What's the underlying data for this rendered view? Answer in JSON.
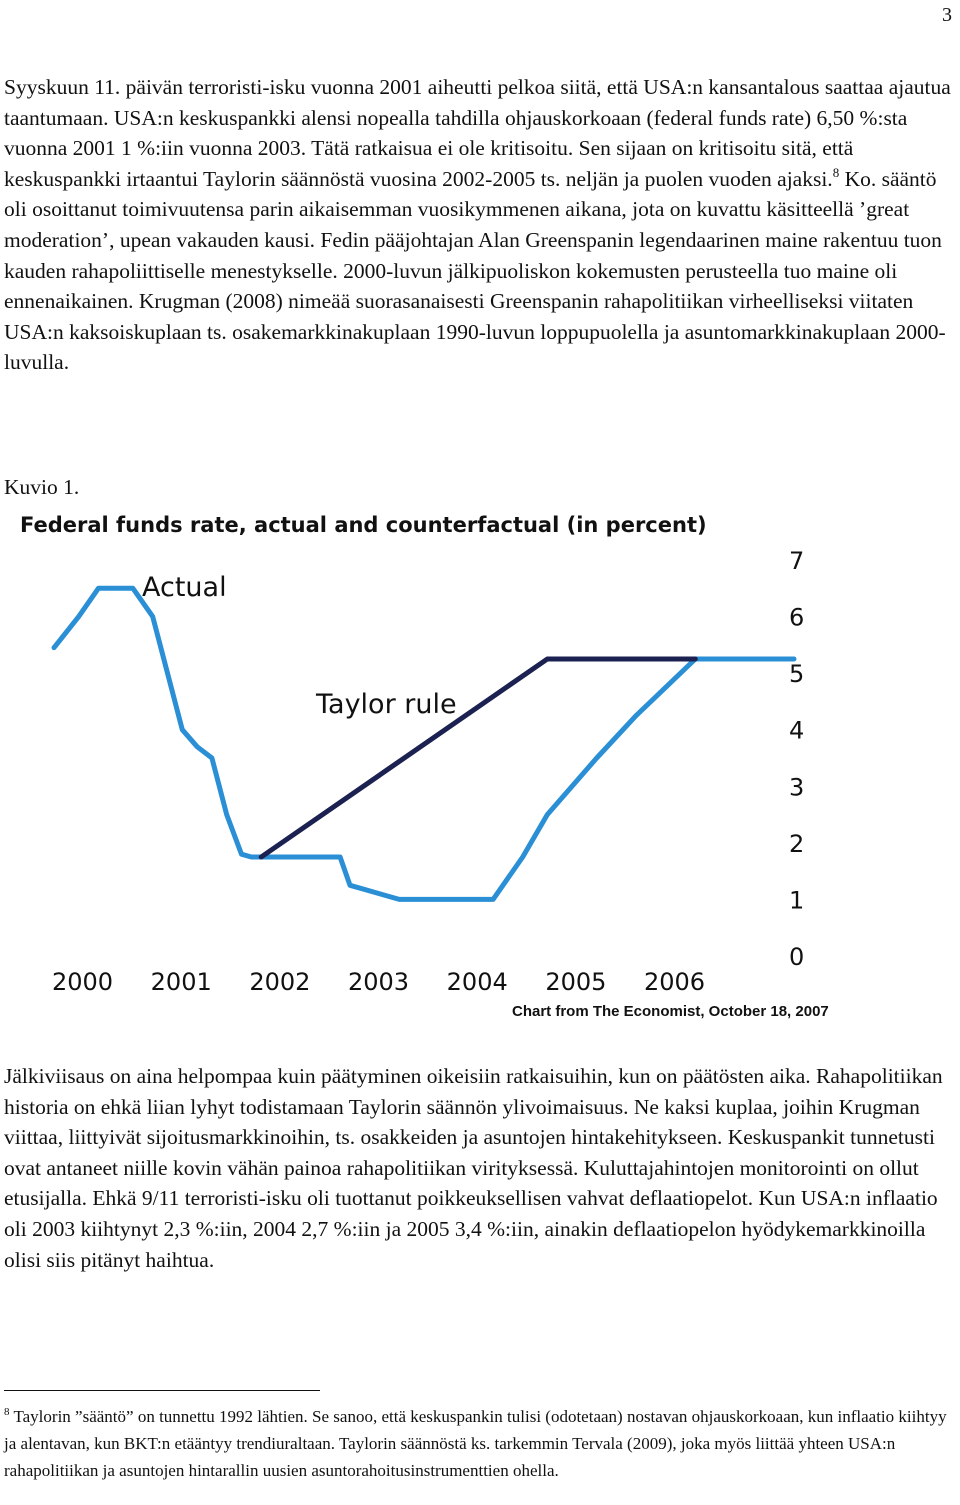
{
  "page_number": "3",
  "paragraph1": {
    "p1": "Syyskuun 11. päivän terroristi-isku vuonna 2001 aiheutti pelkoa siitä, että USA:n kansantalous saattaa ajautua taantumaan. USA:n keskuspankki alensi nopealla tahdilla ohjauskorkoaan (federal funds rate) 6,50 %:sta vuonna 2001 1 %:iin vuonna 2003. Tätä ratkaisua ei ole kritisoitu. Sen sijaan on kritisoitu sitä, että keskuspankki irtaantui Taylorin säännöstä vuosina 2002-2005 ts. neljän ja puolen vuoden ajaksi.",
    "footnote_ref": "8",
    "p2": " Ko. sääntö oli osoittanut toimivuutensa parin aikaisemman vuosikymmenen aikana, jota on kuvattu käsitteellä ’great moderation’, upean vakauden kausi. Fedin pääjohtajan Alan Greenspanin legendaarinen maine rakentuu tuon kauden rahapoliittiselle menestykselle. 2000-luvun jälkipuoliskon kokemusten perusteella tuo maine oli ennenaikainen. Krugman (2008) nimeää suorasanaisesti Greenspanin rahapolitiikan virheelliseksi viitaten USA:n kaksoiskuplaan ts. osakemarkkinakuplaan 1990-luvun loppupuolella ja asuntomarkkinakuplaan 2000-luvulla."
  },
  "figure_caption": "Kuvio 1.",
  "chart_data": {
    "type": "line",
    "title": "Federal funds rate, actual and counterfactual (in percent)",
    "source": "Chart from The Economist, October 18, 2007",
    "xlabel": "",
    "ylabel": "",
    "x_ticks": [
      "2000",
      "2001",
      "2002",
      "2003",
      "2004",
      "2005",
      "2006"
    ],
    "y_ticks": [
      "0",
      "1",
      "2",
      "3",
      "4",
      "5",
      "6",
      "7"
    ],
    "xlim": [
      2000.0,
      2007.5
    ],
    "ylim": [
      0,
      7
    ],
    "y_axis_side": "right",
    "grid": false,
    "legend": "inline labels",
    "colors": {
      "actual": "#2b8fd6",
      "taylor": "#1b2150"
    },
    "series": [
      {
        "name": "Actual",
        "points": [
          [
            2000.0,
            5.45
          ],
          [
            2000.25,
            6.0
          ],
          [
            2000.45,
            6.5
          ],
          [
            2000.8,
            6.5
          ],
          [
            2001.0,
            6.0
          ],
          [
            2001.15,
            5.0
          ],
          [
            2001.3,
            4.0
          ],
          [
            2001.45,
            3.7
          ],
          [
            2001.6,
            3.5
          ],
          [
            2001.75,
            2.5
          ],
          [
            2001.9,
            1.8
          ],
          [
            2002.0,
            1.75
          ],
          [
            2002.9,
            1.75
          ],
          [
            2003.0,
            1.25
          ],
          [
            2003.5,
            1.0
          ],
          [
            2004.45,
            1.0
          ],
          [
            2004.75,
            1.75
          ],
          [
            2005.0,
            2.5
          ],
          [
            2005.5,
            3.5
          ],
          [
            2005.9,
            4.25
          ],
          [
            2006.2,
            4.75
          ],
          [
            2006.5,
            5.25
          ],
          [
            2007.5,
            5.25
          ]
        ]
      },
      {
        "name": "Taylor rule",
        "points": [
          [
            2002.1,
            1.75
          ],
          [
            2005.0,
            5.25
          ],
          [
            2006.5,
            5.25
          ]
        ]
      }
    ]
  },
  "paragraph2": "Jälkiviisaus on aina helpompaa kuin päätyminen oikeisiin ratkaisuihin, kun on päätösten aika. Rahapolitiikan historia on ehkä liian lyhyt todistamaan Taylorin säännön ylivoimaisuus. Ne kaksi kuplaa, joihin Krugman viittaa, liittyivät sijoitusmarkkinoihin, ts. osakkeiden ja asuntojen hintakehitykseen. Keskuspankit tunnetusti ovat antaneet niille kovin vähän painoa rahapolitiikan virityksessä. Kuluttajahintojen monitorointi on ollut etusijalla. Ehkä 9/11 terroristi-isku oli tuottanut poikkeuksellisen vahvat deflaatiopelot. Kun USA:n inflaatio oli 2003 kiihtynyt 2,3 %:iin, 2004 2,7 %:iin ja 2005 3,4 %:iin, ainakin deflaatiopelon hyödykemarkkinoilla olisi siis pitänyt haihtua.",
  "footnote": {
    "number": "8",
    "text": " Taylorin ”sääntö” on tunnettu 1992 lähtien. Se sanoo, että keskuspankin tulisi (odotetaan) nostavan ohjauskorkoaan, kun inflaatio kiihtyy ja alentavan, kun BKT:n etääntyy trendiuraltaan. Taylorin säännöstä ks. tarkemmin Tervala (2009), joka myös liittää yhteen USA:n rahapolitiikan ja asuntojen hintarallin uusien asuntorahoitusinstrumenttien ohella."
  }
}
